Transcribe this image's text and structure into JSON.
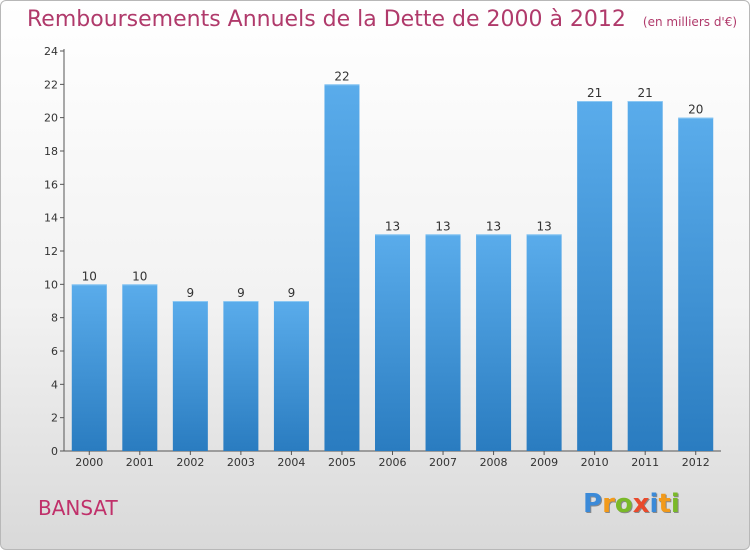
{
  "header": {
    "title": "Remboursements Annuels de la Dette de 2000 à 2012",
    "unit": "(en milliers d'€)"
  },
  "footer": {
    "city": "BANSAT",
    "logo": "Proxiti",
    "logo_letters": [
      {
        "ch": "P",
        "color": "#3b8ad8"
      },
      {
        "ch": "r",
        "color": "#f29a1a"
      },
      {
        "ch": "o",
        "color": "#7ab929"
      },
      {
        "ch": "x",
        "color": "#e94a2c"
      },
      {
        "ch": "i",
        "color": "#3b8ad8"
      },
      {
        "ch": "t",
        "color": "#f29a1a"
      },
      {
        "ch": "i",
        "color": "#7ab929"
      }
    ]
  },
  "chart_data": {
    "type": "bar",
    "title": "Remboursements Annuels de la Dette de 2000 à 2012",
    "xlabel": "",
    "ylabel": "",
    "categories": [
      "2000",
      "2001",
      "2002",
      "2003",
      "2004",
      "2005",
      "2006",
      "2007",
      "2008",
      "2009",
      "2010",
      "2011",
      "2012"
    ],
    "values": [
      10,
      10,
      9,
      9,
      9,
      22,
      13,
      13,
      13,
      13,
      21,
      21,
      20
    ],
    "ylim": [
      0,
      24
    ],
    "yticks": [
      0,
      2,
      4,
      6,
      8,
      10,
      12,
      14,
      16,
      18,
      20,
      22,
      24
    ],
    "grid": false,
    "legend": "none",
    "colors": {
      "bar_top": "#5aaceb",
      "bar_bottom": "#2a7cc0",
      "axis": "#555555"
    }
  }
}
